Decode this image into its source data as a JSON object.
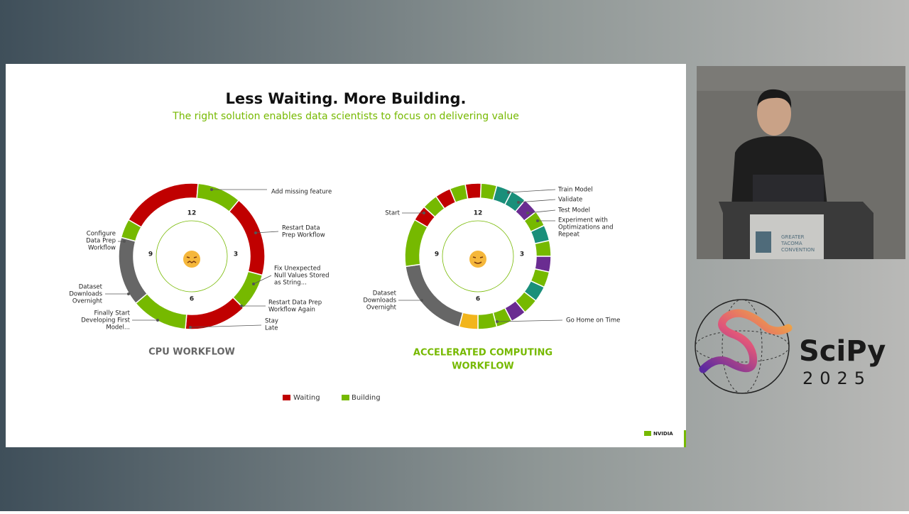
{
  "slide": {
    "title": "Less Waiting. More Building.",
    "subtitle": "The right solution enables data scientists to focus on delivering value",
    "clock": [
      "12",
      "3",
      "6",
      "9"
    ],
    "cpu": {
      "caption": "CPU WORKFLOW",
      "annotations": [
        [
          "Add missing feature"
        ],
        [
          "Restart Data",
          "Prep Workflow"
        ],
        [
          "Fix Unexpected",
          "Null Values Stored",
          "as String..."
        ],
        [
          "Restart Data Prep",
          "Workflow Again"
        ],
        [
          "Stay",
          "Late"
        ],
        [
          "Configure",
          "Data Prep",
          "Workflow"
        ],
        [
          "Dataset",
          "Downloads",
          "Overnight"
        ],
        [
          "Finally Start",
          "Developing First",
          "Model..."
        ]
      ]
    },
    "accelerated": {
      "caption": [
        "ACCELERATED COMPUTING",
        "WORKFLOW"
      ],
      "annotations": [
        [
          "Start"
        ],
        [
          "Train Model"
        ],
        [
          "Validate"
        ],
        [
          "Test Model"
        ],
        [
          "Experiment with",
          "Optimizations and",
          "Repeat"
        ],
        [
          "Dataset",
          "Downloads",
          "Overnight"
        ],
        [
          "Go Home on Time"
        ]
      ]
    },
    "legend": [
      "Waiting",
      "Building"
    ],
    "brand": "NVIDIA"
  },
  "video": {
    "sign": [
      "GREATER",
      "TACOMA",
      "CONVENTION"
    ],
    "logo": "SciPy",
    "year": "2025"
  }
}
